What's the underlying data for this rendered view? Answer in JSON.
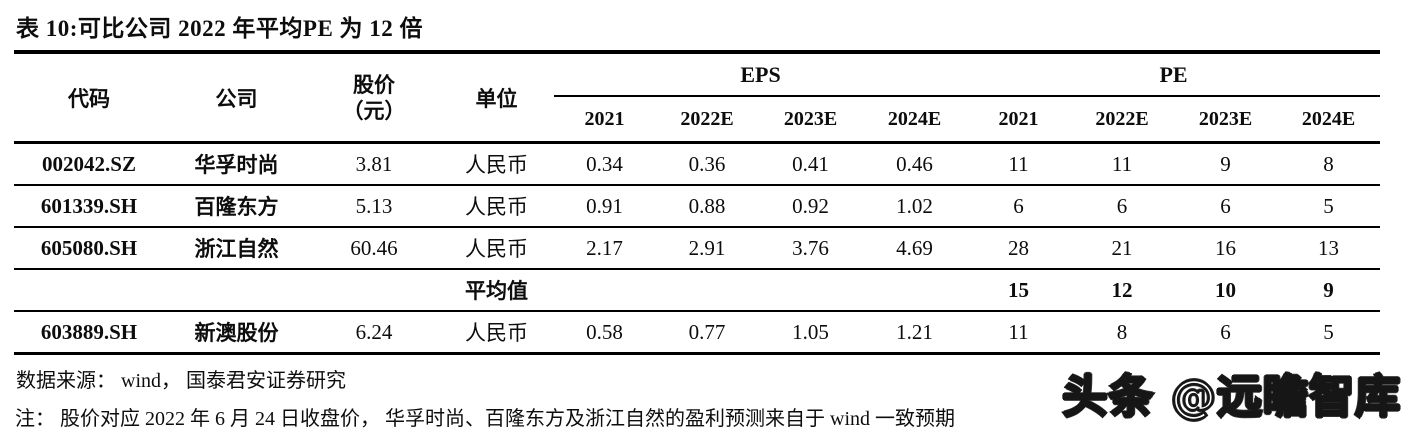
{
  "title": "表 10:可比公司 2022 年平均PE 为 12 倍",
  "table": {
    "headers": {
      "code": "代码",
      "company": "公司",
      "price_line1": "股价",
      "price_line2": "（元）",
      "unit": "单位",
      "eps_group": "EPS",
      "pe_group": "PE",
      "years": [
        "2021",
        "2022E",
        "2023E",
        "2024E"
      ]
    },
    "rows": [
      {
        "code": "002042.SZ",
        "company": "华孚时尚",
        "price": "3.81",
        "unit": "人民币",
        "eps": [
          "0.34",
          "0.36",
          "0.41",
          "0.46"
        ],
        "pe": [
          "11",
          "11",
          "9",
          "8"
        ],
        "bold": false
      },
      {
        "code": "601339.SH",
        "company": "百隆东方",
        "price": "5.13",
        "unit": "人民币",
        "eps": [
          "0.91",
          "0.88",
          "0.92",
          "1.02"
        ],
        "pe": [
          "6",
          "6",
          "6",
          "5"
        ],
        "bold": false
      },
      {
        "code": "605080.SH",
        "company": "浙江自然",
        "price": "60.46",
        "unit": "人民币",
        "eps": [
          "2.17",
          "2.91",
          "3.76",
          "4.69"
        ],
        "pe": [
          "28",
          "21",
          "16",
          "13"
        ],
        "bold": false
      },
      {
        "code": "",
        "company": "",
        "price": "",
        "unit": "平均值",
        "eps": [
          "",
          "",
          "",
          ""
        ],
        "pe": [
          "15",
          "12",
          "10",
          "9"
        ],
        "bold": true
      },
      {
        "code": "603889.SH",
        "company": "新澳股份",
        "price": "6.24",
        "unit": "人民币",
        "eps": [
          "0.58",
          "0.77",
          "1.05",
          "1.21"
        ],
        "pe": [
          "11",
          "8",
          "6",
          "5"
        ],
        "bold": false
      }
    ]
  },
  "source": "数据来源： wind， 国泰君安证券研究",
  "note": "注： 股价对应 2022 年 6 月 24 日收盘价， 华孚时尚、百隆东方及浙江自然的盈利预测来自于 wind 一致预期",
  "watermark": "头条 @远瞻智库",
  "colors": {
    "text": "#0d0d0d",
    "line": "#000000",
    "background": "#ffffff"
  }
}
